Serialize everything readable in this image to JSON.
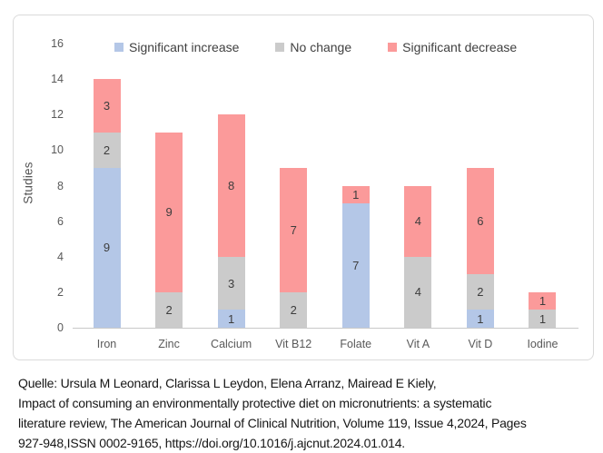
{
  "chart_data": {
    "type": "bar",
    "stacked": true,
    "title": "",
    "xlabel": "",
    "ylabel": "Studies",
    "ylim": [
      0,
      16
    ],
    "ytick_step": 2,
    "grid": false,
    "legend_position": "top",
    "categories": [
      "Iron",
      "Zinc",
      "Calcium",
      "Vit B12",
      "Folate",
      "Vit A",
      "Vit D",
      "Iodine"
    ],
    "series": [
      {
        "name": "Significant increase",
        "color": "#B4C7E7",
        "values": [
          9,
          0,
          1,
          0,
          7,
          0,
          1,
          0
        ]
      },
      {
        "name": "No change",
        "color": "#CBCBCB",
        "values": [
          2,
          2,
          3,
          2,
          0,
          4,
          2,
          1
        ]
      },
      {
        "name": "Significant decrease",
        "color": "#FB9A9A",
        "values": [
          3,
          9,
          8,
          7,
          1,
          4,
          6,
          1
        ]
      }
    ]
  },
  "caption": {
    "lines": [
      "Quelle: Ursula M Leonard, Clarissa L Leydon, Elena Arranz, Mairead E Kiely,",
      "Impact of consuming an environmentally protective diet on micronutrients: a systematic",
      "literature review, The American Journal of Clinical Nutrition, Volume 119, Issue 4,2024, Pages",
      "927-948,ISSN 0002-9165, https://doi.org/10.1016/j.ajcnut.2024.01.014."
    ]
  }
}
